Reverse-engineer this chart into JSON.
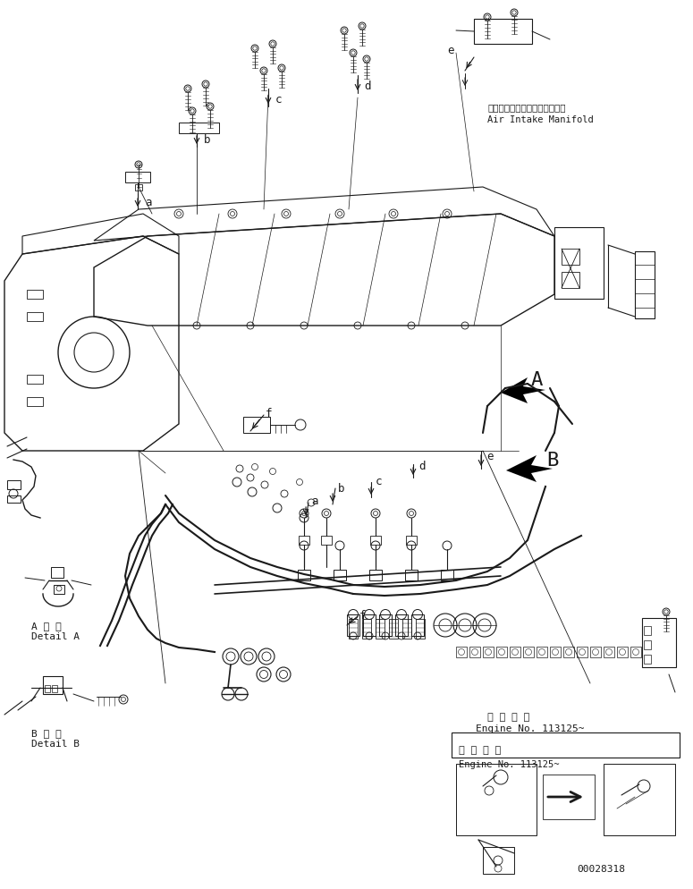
{
  "bg_color": "#ffffff",
  "line_color": "#1a1a1a",
  "part_number": "00028318",
  "air_intake_label_jp": "エアーインテークマニホールド",
  "air_intake_label_en": "Air Intake Manifold",
  "engine_no_label": "適 用 号 機",
  "engine_no_en": "Engine No. 113125~",
  "detail_a_jp": "A 詳 細",
  "detail_a_en": "Detail A",
  "detail_b_jp": "B 詳 細",
  "detail_b_en": "Detail B",
  "label_A": "A",
  "label_B": "B"
}
